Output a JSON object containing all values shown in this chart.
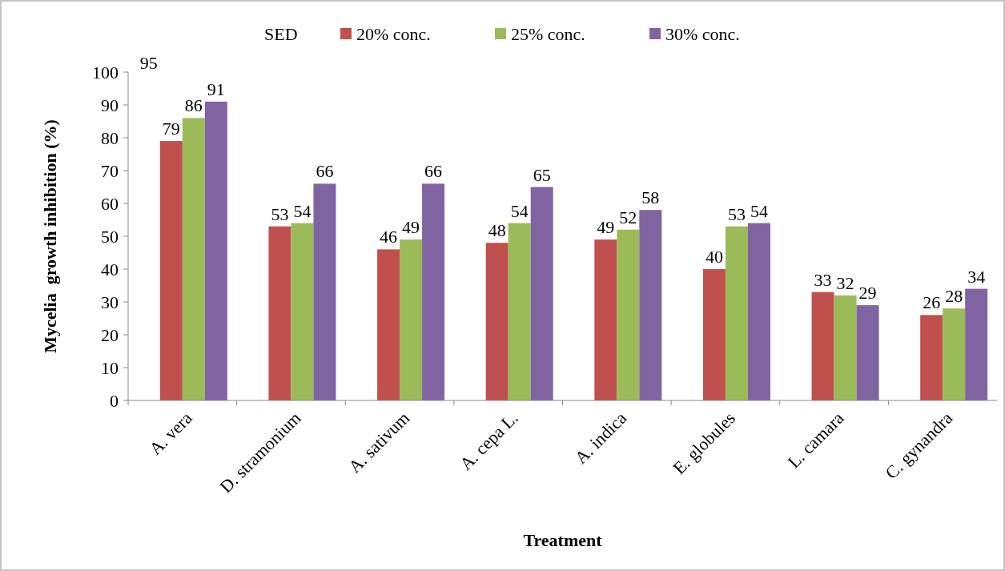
{
  "chart_data": {
    "type": "bar",
    "xlabel": "Treatment",
    "ylabel": "Mycelia  growth inhibition (%)",
    "legend_title": "SED",
    "categories": [
      "A. vera",
      "D. stramonium",
      "A. sativum",
      "A. cepa L.",
      "A. indica",
      "E. globules",
      "L. camara",
      "C. gynandra"
    ],
    "series": [
      {
        "name": "20% conc.",
        "color": "#c0504d",
        "values": [
          79,
          53,
          46,
          48,
          49,
          40,
          33,
          26
        ]
      },
      {
        "name": "25% conc.",
        "color": "#9bbb59",
        "values": [
          86,
          54,
          49,
          54,
          52,
          53,
          32,
          28
        ]
      },
      {
        "name": "30% conc.",
        "color": "#8064a2",
        "values": [
          91,
          66,
          66,
          65,
          58,
          54,
          29,
          34
        ]
      }
    ],
    "ylim": [
      0,
      100
    ],
    "yticks": [
      0,
      10,
      20,
      30,
      40,
      50,
      60,
      70,
      80,
      90,
      100
    ],
    "grid": false,
    "legend": "top",
    "data_labels": true,
    "annotations": [
      "95"
    ]
  }
}
